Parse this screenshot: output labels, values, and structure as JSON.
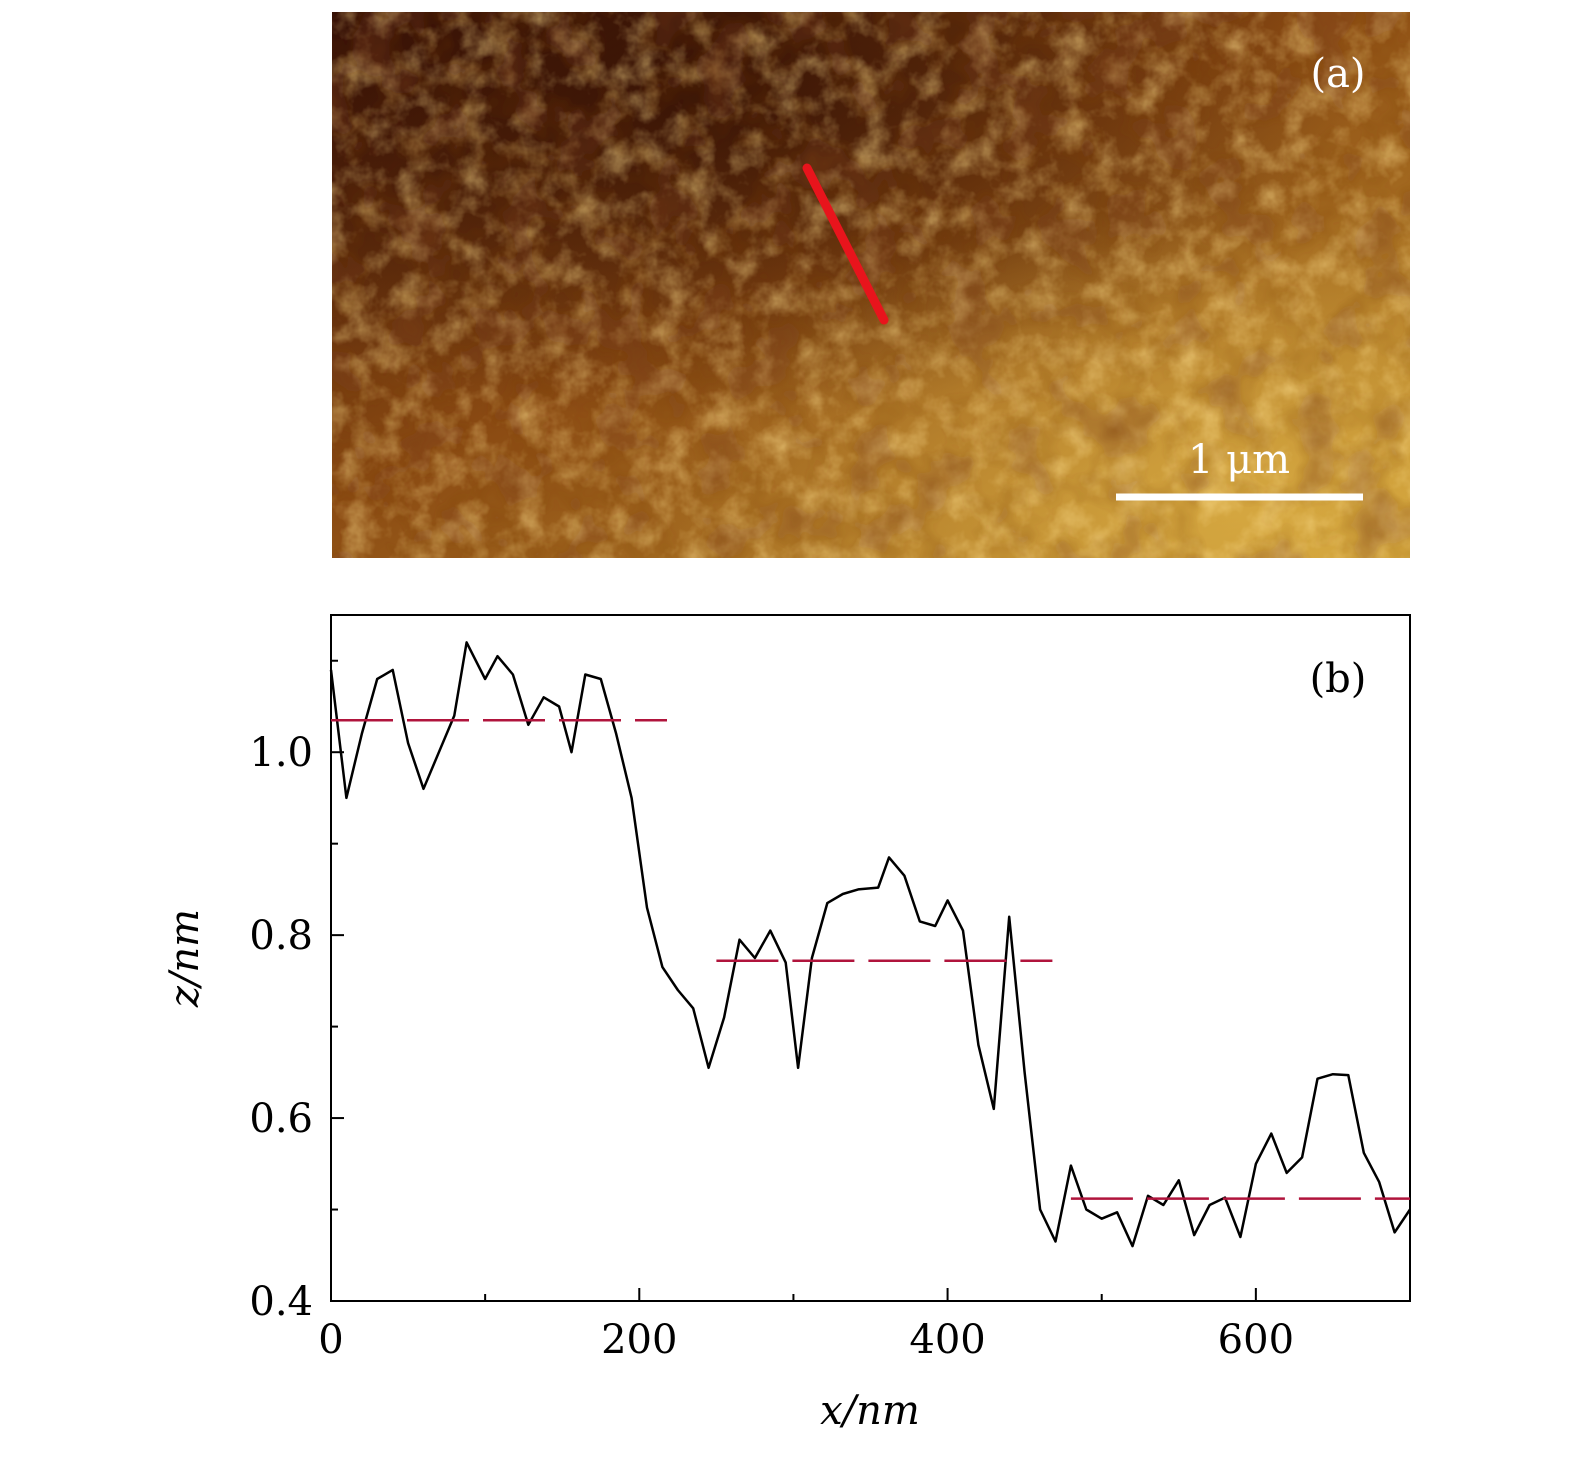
{
  "panel_a": {
    "label": "(a)",
    "scale_bar_label": "1 μm",
    "colors": {
      "afm_dark": "#3a1206",
      "afm_mid": "#8a4a12",
      "afm_light": "#c99a35",
      "line_cut": "#e8141c",
      "scale_bar": "#ffffff"
    }
  },
  "chart_data": {
    "type": "line",
    "panel_label": "(b)",
    "xlabel": "x/nm",
    "ylabel": "z/nm",
    "xlim": [
      0,
      700
    ],
    "ylim": [
      0.4,
      1.15
    ],
    "x_ticks": [
      0,
      200,
      400,
      600
    ],
    "x_tick_labels": [
      "0",
      "200",
      "400",
      "600"
    ],
    "x_minor_ticks": [
      100,
      300,
      500
    ],
    "y_ticks": [
      0.4,
      0.6,
      0.8,
      1.0
    ],
    "y_tick_labels": [
      "0.4",
      "0.6",
      "0.8",
      "1.0"
    ],
    "y_minor_ticks": [
      0.5,
      0.7,
      0.9,
      1.1
    ],
    "grid": false,
    "colors": {
      "profile": "#000000",
      "levels": "#b0143c"
    },
    "series": [
      {
        "x": [
          0,
          10,
          20,
          30,
          40,
          50,
          60,
          70,
          80,
          88,
          100,
          108,
          118,
          128,
          138,
          148,
          156,
          165,
          175,
          185,
          195,
          205,
          215,
          225,
          235,
          245,
          255,
          265,
          275,
          285,
          295,
          303,
          312,
          322,
          332,
          342,
          355,
          362,
          372,
          382,
          392,
          400,
          410,
          420,
          430,
          440,
          450,
          460,
          470,
          480,
          490,
          500,
          510,
          520,
          530,
          540,
          550,
          560,
          570,
          580,
          590,
          600,
          610,
          620,
          630,
          640,
          650,
          660,
          670,
          680,
          690,
          700
        ],
        "y": [
          1.09,
          0.95,
          1.02,
          1.08,
          1.09,
          1.01,
          0.96,
          1.0,
          1.04,
          1.12,
          1.08,
          1.105,
          1.085,
          1.03,
          1.06,
          1.05,
          1.0,
          1.085,
          1.08,
          1.02,
          0.95,
          0.83,
          0.765,
          0.74,
          0.72,
          0.655,
          0.71,
          0.795,
          0.775,
          0.805,
          0.77,
          0.655,
          0.775,
          0.835,
          0.845,
          0.85,
          0.852,
          0.885,
          0.865,
          0.815,
          0.81,
          0.838,
          0.805,
          0.68,
          0.61,
          0.82,
          0.65,
          0.5,
          0.465,
          0.548,
          0.5,
          0.49,
          0.497,
          0.46,
          0.515,
          0.505,
          0.532,
          0.472,
          0.505,
          0.513,
          0.47,
          0.55,
          0.583,
          0.54,
          0.557,
          0.643,
          0.648,
          0.647,
          0.562,
          0.53,
          0.475,
          0.5
        ]
      },
      {
        "style": "dashed",
        "x": [
          0,
          218
        ],
        "y": [
          1.035,
          1.035
        ]
      },
      {
        "style": "dashed",
        "x": [
          250,
          468
        ],
        "y": [
          0.772,
          0.772
        ]
      },
      {
        "style": "dashed",
        "x": [
          480,
          700
        ],
        "y": [
          0.512,
          0.512
        ]
      }
    ]
  }
}
